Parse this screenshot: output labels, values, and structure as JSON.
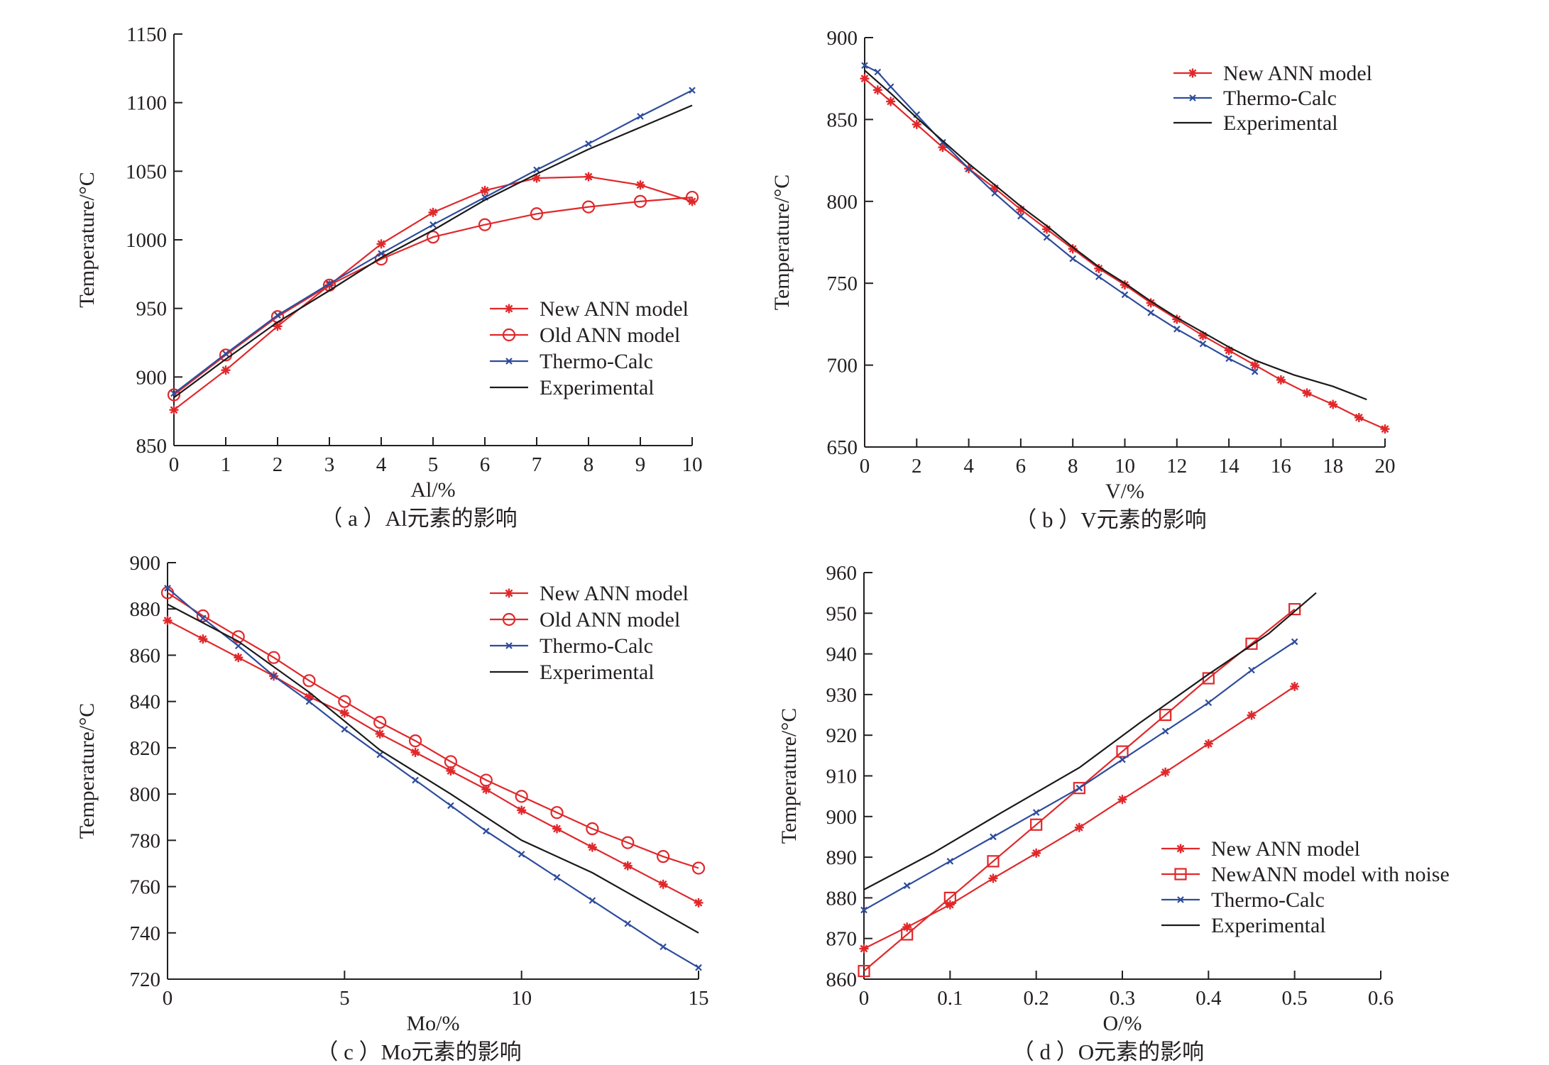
{
  "colors": {
    "new_ann": "#e0282b",
    "old_ann": "#e0282b",
    "thermo": "#2e4c9c",
    "experimental": "#1a1a1a",
    "axis": "#231f20"
  },
  "chart_data": [
    {
      "id": "a",
      "type": "line",
      "caption": "（ a ）Al元素的影响",
      "xlabel": "Al/%",
      "ylabel": "Temperature/°C",
      "xlim": [
        0,
        10
      ],
      "ylim": [
        850,
        1150
      ],
      "xticks": [
        0,
        1,
        2,
        3,
        4,
        5,
        6,
        7,
        8,
        9,
        10
      ],
      "yticks": [
        850,
        900,
        950,
        1000,
        1050,
        1100,
        1150
      ],
      "legend_position": "bottom-right",
      "series": [
        {
          "name": "New ANN model",
          "marker": "star",
          "color": "#e0282b",
          "x": [
            0,
            1,
            2,
            3,
            4,
            5,
            6,
            7,
            8,
            9,
            10
          ],
          "y": [
            876,
            905,
            937,
            967,
            997,
            1020,
            1036,
            1045,
            1046,
            1040,
            1028
          ]
        },
        {
          "name": "Old ANN model",
          "marker": "circle",
          "color": "#e0282b",
          "x": [
            0,
            1,
            2,
            3,
            4,
            5,
            6,
            7,
            8,
            9,
            10
          ],
          "y": [
            887,
            916,
            944,
            967,
            986,
            1002,
            1011,
            1019,
            1024,
            1028,
            1031
          ]
        },
        {
          "name": "Thermo-Calc",
          "marker": "x",
          "color": "#2e4c9c",
          "x": [
            0,
            1,
            2,
            3,
            4,
            5,
            6,
            7,
            8,
            9,
            10
          ],
          "y": [
            888,
            917,
            945,
            968,
            990,
            1011,
            1031,
            1051,
            1070,
            1090,
            1109
          ]
        },
        {
          "name": "Experimental",
          "marker": "none",
          "color": "#1a1a1a",
          "x": [
            0,
            1,
            2,
            3,
            4,
            5,
            6,
            7,
            8,
            9,
            10
          ],
          "y": [
            885,
            913,
            940,
            963,
            987,
            1007,
            1029,
            1048,
            1066,
            1082,
            1098
          ]
        }
      ]
    },
    {
      "id": "b",
      "type": "line",
      "caption": "（ b ）V元素的影响",
      "xlabel": "V/%",
      "ylabel": "Temperature/°C",
      "xlim": [
        0,
        20
      ],
      "ylim": [
        650,
        900
      ],
      "xticks": [
        0,
        2,
        4,
        6,
        8,
        10,
        12,
        14,
        16,
        18,
        20
      ],
      "yticks": [
        650,
        700,
        750,
        800,
        850,
        900
      ],
      "legend_position": "top-right",
      "series": [
        {
          "name": "New ANN model",
          "marker": "star",
          "color": "#e0282b",
          "x": [
            0,
            0.5,
            1,
            2,
            3,
            4,
            5,
            6,
            7,
            8,
            9,
            10,
            11,
            12,
            13,
            14,
            15,
            16,
            17,
            18,
            19,
            20
          ],
          "y": [
            875,
            868,
            861,
            847,
            833,
            820,
            808,
            795,
            783,
            771,
            759,
            749,
            738,
            728,
            718,
            709,
            700,
            691,
            683,
            676,
            668,
            661
          ]
        },
        {
          "name": "Thermo-Calc",
          "marker": "x",
          "color": "#2e4c9c",
          "x": [
            0,
            0.5,
            1,
            2,
            3,
            4,
            5,
            6,
            7,
            8,
            9,
            10,
            11,
            12,
            13,
            14,
            15
          ],
          "y": [
            883,
            879,
            870,
            853,
            836,
            820,
            805,
            791,
            778,
            765,
            754,
            743,
            732,
            722,
            713,
            704,
            696
          ]
        },
        {
          "name": "Experimental",
          "marker": "none",
          "color": "#1a1a1a",
          "x": [
            0,
            1,
            2,
            3,
            4,
            5,
            6,
            7,
            8,
            9,
            10,
            11,
            12,
            13,
            14,
            15,
            16.5,
            18,
            19.3
          ],
          "y": [
            880,
            866,
            851,
            837,
            823,
            810,
            797,
            785,
            772,
            760,
            750,
            739,
            729,
            720,
            711,
            703,
            694,
            687,
            679
          ]
        }
      ]
    },
    {
      "id": "c",
      "type": "line",
      "caption": "（ c ）Mo元素的影响",
      "xlabel": "Mo/%",
      "ylabel": "Temperature/°C",
      "xlim": [
        0,
        15
      ],
      "ylim": [
        720,
        900
      ],
      "xticks": [
        0,
        5,
        10,
        15
      ],
      "yticks": [
        720,
        740,
        760,
        780,
        800,
        820,
        840,
        860,
        880,
        900
      ],
      "legend_position": "top-right",
      "series": [
        {
          "name": "New ANN model",
          "marker": "star",
          "color": "#e0282b",
          "x": [
            0,
            1,
            2,
            3,
            4,
            5,
            6,
            7,
            8,
            9,
            10,
            11,
            12,
            13,
            14,
            15
          ],
          "y": [
            875,
            867,
            859,
            851,
            842,
            835,
            826,
            818,
            810,
            802,
            793,
            785,
            777,
            769,
            761,
            753
          ]
        },
        {
          "name": "Old ANN model",
          "marker": "circle",
          "color": "#e0282b",
          "x": [
            0,
            1,
            2,
            3,
            4,
            5,
            6,
            7,
            8,
            9,
            10,
            11,
            12,
            13,
            14,
            15
          ],
          "y": [
            887,
            877,
            868,
            859,
            849,
            840,
            831,
            823,
            814,
            806,
            799,
            792,
            785,
            779,
            773,
            768
          ]
        },
        {
          "name": "Thermo-Calc",
          "marker": "x",
          "color": "#2e4c9c",
          "x": [
            0,
            1,
            2,
            3,
            4,
            5,
            6,
            7,
            8,
            9,
            10,
            11,
            12,
            13,
            14,
            15
          ],
          "y": [
            889,
            876,
            864,
            851,
            840,
            828,
            817,
            806,
            795,
            784,
            774,
            764,
            754,
            744,
            734,
            725
          ]
        },
        {
          "name": "Experimental",
          "marker": "none",
          "color": "#1a1a1a",
          "x": [
            0,
            2,
            4,
            6,
            8,
            10,
            12,
            15
          ],
          "y": [
            882,
            866,
            844,
            819,
            800,
            780,
            766,
            740
          ]
        }
      ]
    },
    {
      "id": "d",
      "type": "line",
      "caption": "（ d ）O元素的影响",
      "xlabel": "O/%",
      "ylabel": "Temperature/°C",
      "xlim": [
        0,
        0.6
      ],
      "ylim": [
        860,
        960
      ],
      "xticks": [
        0,
        0.1,
        0.2,
        0.3,
        0.4,
        0.5,
        0.6
      ],
      "yticks": [
        860,
        870,
        880,
        890,
        900,
        910,
        920,
        930,
        940,
        950,
        960
      ],
      "legend_position": "bottom-right",
      "series": [
        {
          "name": "New ANN model",
          "marker": "star",
          "color": "#e0282b",
          "x": [
            0,
            0.05,
            0.1,
            0.15,
            0.2,
            0.25,
            0.3,
            0.35,
            0.4,
            0.45,
            0.5
          ],
          "y": [
            867.5,
            872.8,
            878.3,
            884.8,
            891,
            897.3,
            904.2,
            910.9,
            917.9,
            924.9,
            932
          ]
        },
        {
          "name": "NewANN model with noise",
          "marker": "square",
          "color": "#e0282b",
          "x": [
            0,
            0.05,
            0.1,
            0.15,
            0.2,
            0.25,
            0.3,
            0.35,
            0.4,
            0.45,
            0.5
          ],
          "y": [
            862,
            871,
            880,
            889,
            898,
            907,
            916,
            925,
            934,
            942.5,
            951
          ]
        },
        {
          "name": "Thermo-Calc",
          "marker": "x",
          "color": "#2e4c9c",
          "x": [
            0,
            0.05,
            0.1,
            0.15,
            0.2,
            0.25,
            0.3,
            0.35,
            0.4,
            0.45,
            0.5
          ],
          "y": [
            877,
            883,
            889,
            895,
            901,
            907,
            914,
            921,
            928,
            936,
            943
          ]
        },
        {
          "name": "Experimental",
          "marker": "none",
          "color": "#1a1a1a",
          "x": [
            0,
            0.08,
            0.16,
            0.25,
            0.32,
            0.4,
            0.47,
            0.525
          ],
          "y": [
            882,
            891,
            901,
            912,
            923,
            935,
            945,
            955
          ]
        }
      ]
    }
  ]
}
